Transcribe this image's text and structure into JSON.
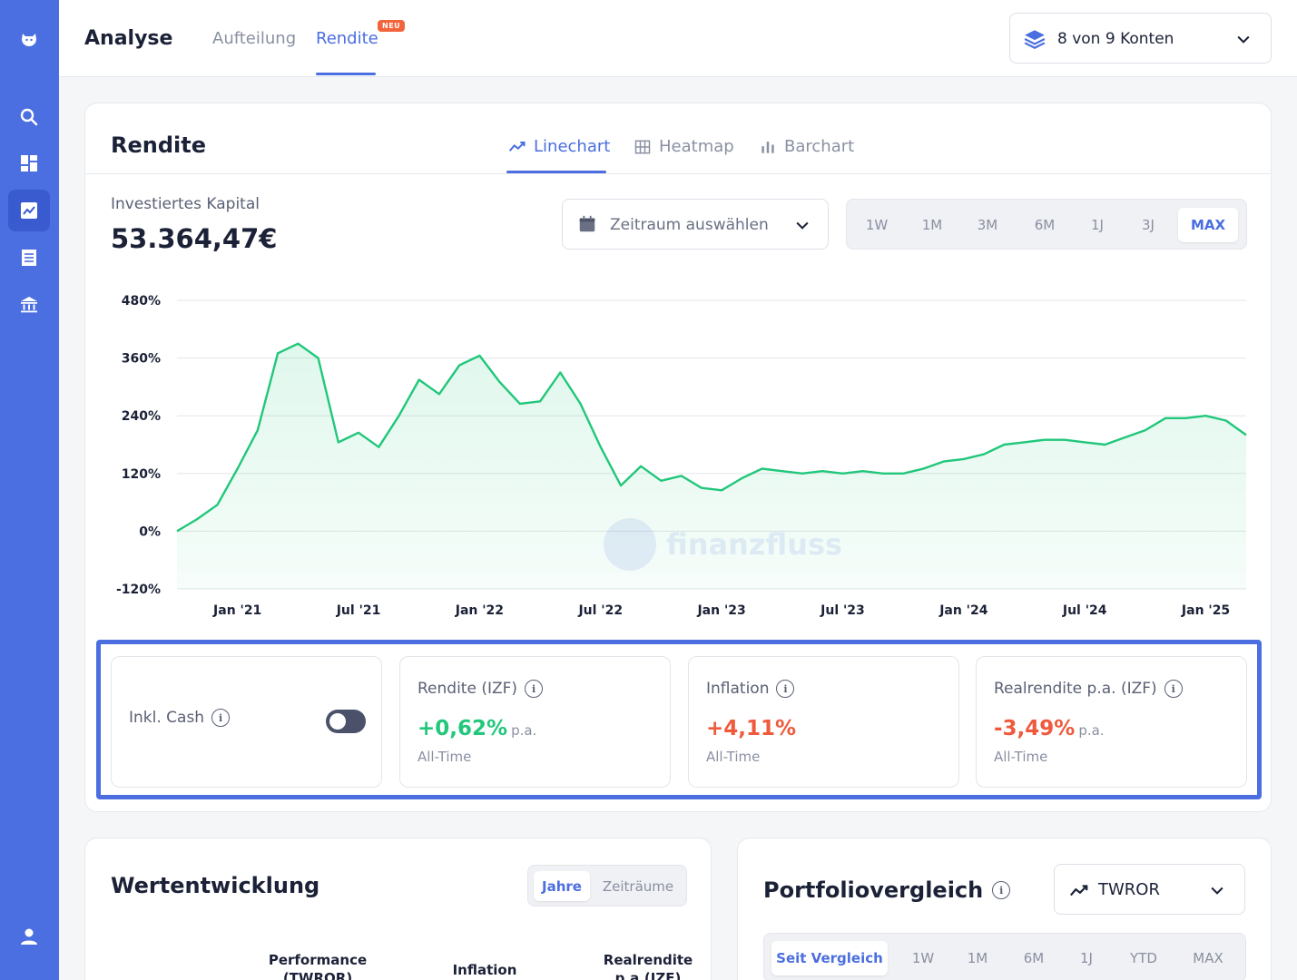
{
  "sidebar": {
    "items": [
      {
        "icon": "logo-icon"
      },
      {
        "icon": "search-icon"
      },
      {
        "icon": "dashboard-icon"
      },
      {
        "icon": "analysis-chart-icon",
        "active": true
      },
      {
        "icon": "transactions-list-icon"
      },
      {
        "icon": "bank-icon"
      },
      {
        "icon": "user-icon"
      }
    ]
  },
  "header": {
    "title": "Analyse",
    "tabs": [
      {
        "label": "Aufteilung"
      },
      {
        "label": "Rendite",
        "active": true,
        "badge": "NEU"
      }
    ],
    "accounts_label": "8 von 9 Konten"
  },
  "rendite_card": {
    "title": "Rendite",
    "views": [
      "Linechart",
      "Heatmap",
      "Barchart"
    ],
    "active_view": "Linechart",
    "capital_label": "Investiertes Kapital",
    "capital_value": "53.364,47€",
    "period_placeholder": "Zeitraum auswählen",
    "ranges": [
      "1W",
      "1M",
      "3M",
      "6M",
      "1J",
      "3J",
      "MAX"
    ],
    "active_range": "MAX",
    "watermark": "finanzfluss"
  },
  "chart_data": {
    "type": "area",
    "xlabel": "",
    "ylabel": "",
    "y_ticks": [
      "480%",
      "360%",
      "240%",
      "120%",
      "0%",
      "-120%"
    ],
    "x_ticks": [
      "Jan '21",
      "Jul '21",
      "Jan '22",
      "Jul '22",
      "Jan '23",
      "Jul '23",
      "Jan '24",
      "Jul '24",
      "Jan '25"
    ],
    "ylim": [
      -120,
      480
    ],
    "grid": true,
    "color": "#21c77a",
    "series": [
      {
        "values": [
          [
            "2020-10",
            0
          ],
          [
            "2020-11",
            25
          ],
          [
            "2020-12",
            55
          ],
          [
            "2021-01",
            130
          ],
          [
            "2021-02",
            210
          ],
          [
            "2021-03",
            370
          ],
          [
            "2021-04",
            390
          ],
          [
            "2021-05",
            360
          ],
          [
            "2021-06",
            185
          ],
          [
            "2021-07",
            205
          ],
          [
            "2021-08",
            175
          ],
          [
            "2021-09",
            240
          ],
          [
            "2021-10",
            315
          ],
          [
            "2021-11",
            285
          ],
          [
            "2021-12",
            345
          ],
          [
            "2022-01",
            365
          ],
          [
            "2022-02",
            310
          ],
          [
            "2022-03",
            265
          ],
          [
            "2022-04",
            270
          ],
          [
            "2022-05",
            330
          ],
          [
            "2022-06",
            265
          ],
          [
            "2022-07",
            175
          ],
          [
            "2022-08",
            95
          ],
          [
            "2022-09",
            135
          ],
          [
            "2022-10",
            105
          ],
          [
            "2022-11",
            115
          ],
          [
            "2022-12",
            90
          ],
          [
            "2023-01",
            85
          ],
          [
            "2023-02",
            110
          ],
          [
            "2023-03",
            130
          ],
          [
            "2023-04",
            125
          ],
          [
            "2023-05",
            120
          ],
          [
            "2023-06",
            125
          ],
          [
            "2023-07",
            120
          ],
          [
            "2023-08",
            125
          ],
          [
            "2023-09",
            120
          ],
          [
            "2023-10",
            120
          ],
          [
            "2023-11",
            130
          ],
          [
            "2023-12",
            145
          ],
          [
            "2024-01",
            150
          ],
          [
            "2024-02",
            160
          ],
          [
            "2024-03",
            180
          ],
          [
            "2024-04",
            185
          ],
          [
            "2024-05",
            190
          ],
          [
            "2024-06",
            190
          ],
          [
            "2024-07",
            185
          ],
          [
            "2024-08",
            180
          ],
          [
            "2024-09",
            195
          ],
          [
            "2024-10",
            210
          ],
          [
            "2024-11",
            235
          ],
          [
            "2024-12",
            235
          ],
          [
            "2025-01",
            240
          ],
          [
            "2025-02",
            230
          ],
          [
            "2025-03",
            200
          ]
        ]
      }
    ]
  },
  "kpis": {
    "cash": {
      "label": "Inkl. Cash",
      "toggle_on": false
    },
    "rendite": {
      "label": "Rendite (IZF)",
      "value": "+0,62%",
      "suffix": "p.a.",
      "sub": "All-Time"
    },
    "inflation": {
      "label": "Inflation",
      "value": "+4,11%",
      "sub": "All-Time"
    },
    "realrendite": {
      "label": "Realrendite p.a. (IZF)",
      "value": "-3,49%",
      "suffix": "p.a.",
      "sub": "All-Time"
    }
  },
  "wertentwicklung": {
    "title": "Wertentwicklung",
    "seg": [
      "Jahre",
      "Zeiträume"
    ],
    "active_seg": "Jahre",
    "columns": [
      "Performance\n(TWROR)",
      "Inflation",
      "Realrendite\np.a.(IZF)"
    ]
  },
  "portfoliovergleich": {
    "title": "Portfoliovergleich",
    "metric": "TWROR",
    "ranges": [
      "Seit Vergleich",
      "1W",
      "1M",
      "6M",
      "1J",
      "YTD",
      "MAX"
    ],
    "active_range": "Seit Vergleich"
  },
  "colors": {
    "accent": "#4b6ee0",
    "positive": "#21c77a",
    "negative": "#ef5a3c",
    "badge": "#f2643c"
  }
}
